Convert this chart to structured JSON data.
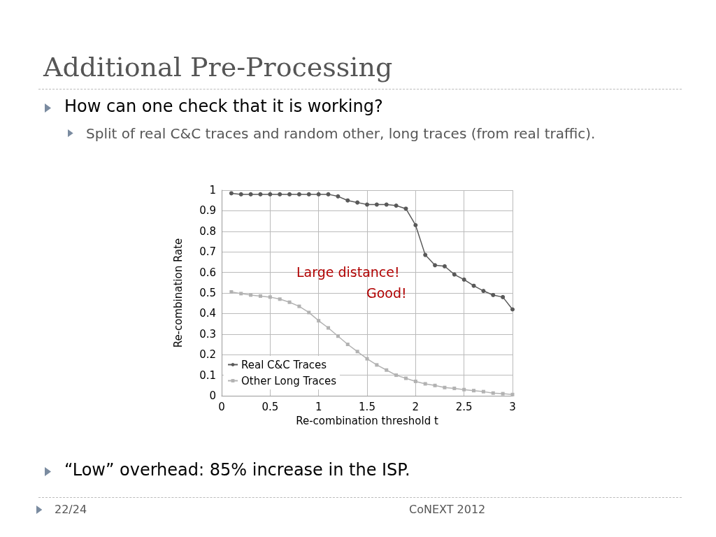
{
  "chart_data": {
    "type": "line",
    "title": "Additional Pre-Processing",
    "subtitle": "How can one check that it is working?",
    "xlabel": "Re-combination threshold t",
    "ylabel": "Re-combination Rate",
    "annotations": [
      "Split of real C&C traces and random other, long traces (from real traffic).",
      "Large distance!",
      "Good!",
      "“Low” overhead: 85% increase in the ISP.",
      "22/24",
      "CoNEXT 2012"
    ],
    "x": [
      0.1,
      0.2,
      0.3,
      0.4,
      0.5,
      0.6,
      0.7,
      0.8,
      0.9,
      1.0,
      1.1,
      1.2,
      1.3,
      1.4,
      1.5,
      1.6,
      1.7,
      1.8,
      1.9,
      2.0,
      2.1,
      2.2,
      2.3,
      2.4,
      2.5,
      2.6,
      2.7,
      2.8,
      2.9,
      3.0
    ],
    "series": [
      {
        "name": "Real C&C Traces",
        "color": "#595959",
        "marker": "circle",
        "values": [
          0.985,
          0.98,
          0.98,
          0.98,
          0.98,
          0.98,
          0.98,
          0.98,
          0.98,
          0.98,
          0.98,
          0.97,
          0.95,
          0.94,
          0.93,
          0.93,
          0.93,
          0.925,
          0.91,
          0.83,
          0.685,
          0.635,
          0.63,
          0.59,
          0.565,
          0.535,
          0.51,
          0.49,
          0.48,
          0.42
        ]
      },
      {
        "name": "Other Long Traces",
        "color": "#b2b2b2",
        "marker": "square",
        "values": [
          0.505,
          0.497,
          0.49,
          0.485,
          0.48,
          0.47,
          0.455,
          0.435,
          0.405,
          0.365,
          0.33,
          0.29,
          0.25,
          0.215,
          0.18,
          0.15,
          0.125,
          0.1,
          0.085,
          0.07,
          0.058,
          0.05,
          0.04,
          0.036,
          0.03,
          0.025,
          0.02,
          0.013,
          0.01,
          0.006
        ]
      }
    ],
    "xlim": [
      0,
      3
    ],
    "xticks": [
      0,
      0.5,
      1,
      1.5,
      2,
      2.5,
      3
    ],
    "ylim": [
      0,
      1
    ],
    "yticks": [
      0,
      0.1,
      0.2,
      0.3,
      0.4,
      0.5,
      0.6,
      0.7,
      0.8,
      0.9,
      1
    ],
    "grid": true,
    "legend": "bottom left",
    "line_style": "solid"
  }
}
